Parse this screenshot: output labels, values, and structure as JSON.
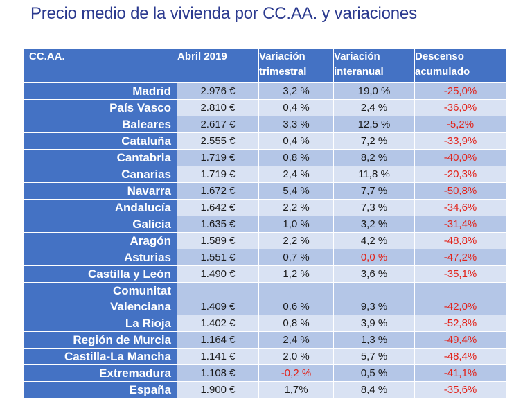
{
  "title": "Precio medio de la vivienda por CC.AA. y variaciones",
  "table": {
    "headers": {
      "region": "CC.AA.",
      "price": "Abril 2019",
      "quarterly": [
        "Variación",
        "trimestral"
      ],
      "annual": [
        "Variación",
        "interanual"
      ],
      "accumulated": [
        "Descenso",
        "acumulado"
      ]
    },
    "rows": [
      {
        "region": "Madrid",
        "price": "2.976 €",
        "quarterly": "3,2 %",
        "annual": "19,0 %",
        "accumulated": "-25,0%"
      },
      {
        "region": "País Vasco",
        "price": "2.810 €",
        "quarterly": "0,4 %",
        "annual": "2,4 %",
        "accumulated": "-36,0%"
      },
      {
        "region": "Baleares",
        "price": "2.617 €",
        "quarterly": "3,3 %",
        "annual": "12,5 %",
        "accumulated": "-5,2%"
      },
      {
        "region": "Cataluña",
        "price": "2.555 €",
        "quarterly": "0,4 %",
        "annual": "7,2 %",
        "accumulated": "-33,9%"
      },
      {
        "region": "Cantabria",
        "price": "1.719 €",
        "quarterly": "0,8 %",
        "annual": "8,2 %",
        "accumulated": "-40,0%"
      },
      {
        "region": "Canarias",
        "price": "1.719 €",
        "quarterly": "2,4 %",
        "annual": "11,8 %",
        "accumulated": "-20,3%"
      },
      {
        "region": "Navarra",
        "price": "1.672 €",
        "quarterly": "5,4 %",
        "annual": "7,7 %",
        "accumulated": "-50,8%"
      },
      {
        "region": "Andalucía",
        "price": "1.642 €",
        "quarterly": "2,2 %",
        "annual": "7,3 %",
        "accumulated": "-34,6%"
      },
      {
        "region": "Galicia",
        "price": "1.635 €",
        "quarterly": "1,0 %",
        "annual": "3,2 %",
        "accumulated": "-31,4%"
      },
      {
        "region": "Aragón",
        "price": "1.589 €",
        "quarterly": "2,2 %",
        "annual": "4,2 %",
        "accumulated": "-48,8%"
      },
      {
        "region": "Asturias",
        "price": "1.551 €",
        "quarterly": "0,7 %",
        "annual": "0,0 %",
        "accumulated": "-47,2%"
      },
      {
        "region": "Castilla y León",
        "price": "1.490 €",
        "quarterly": "1,2 %",
        "annual": "3,6 %",
        "accumulated": "-35,1%"
      },
      {
        "region_line1": "Comunitat",
        "region_line2": "Valenciana",
        "price": "1.409 €",
        "quarterly": "0,6 %",
        "annual": "9,3 %",
        "accumulated": "-42,0%"
      },
      {
        "region": "La Rioja",
        "price": "1.402 €",
        "quarterly": "0,8 %",
        "annual": "3,9 %",
        "accumulated": "-52,8%"
      },
      {
        "region": "Región de Murcia",
        "price": "1.164 €",
        "quarterly": "2,4 %",
        "annual": "1,3 %",
        "accumulated": "-49,4%"
      },
      {
        "region": "Castilla-La Mancha",
        "price": "1.141 €",
        "quarterly": "2,0 %",
        "annual": "5,7 %",
        "accumulated": "-48,4%"
      },
      {
        "region": "Extremadura",
        "price": "1.108 €",
        "quarterly": "-0,2 %",
        "annual": "0,5 %",
        "accumulated": "-41,1%"
      },
      {
        "region": "España",
        "price": "1.900 €",
        "quarterly": "1,7%",
        "annual": "8,4 %",
        "accumulated": "-35,6%"
      }
    ]
  },
  "colors": {
    "title": "#2b3a8f",
    "header_bg": "#4472c4",
    "row_odd": "#b4c6e7",
    "row_even": "#d9e2f3",
    "negative": "#e2231a"
  }
}
